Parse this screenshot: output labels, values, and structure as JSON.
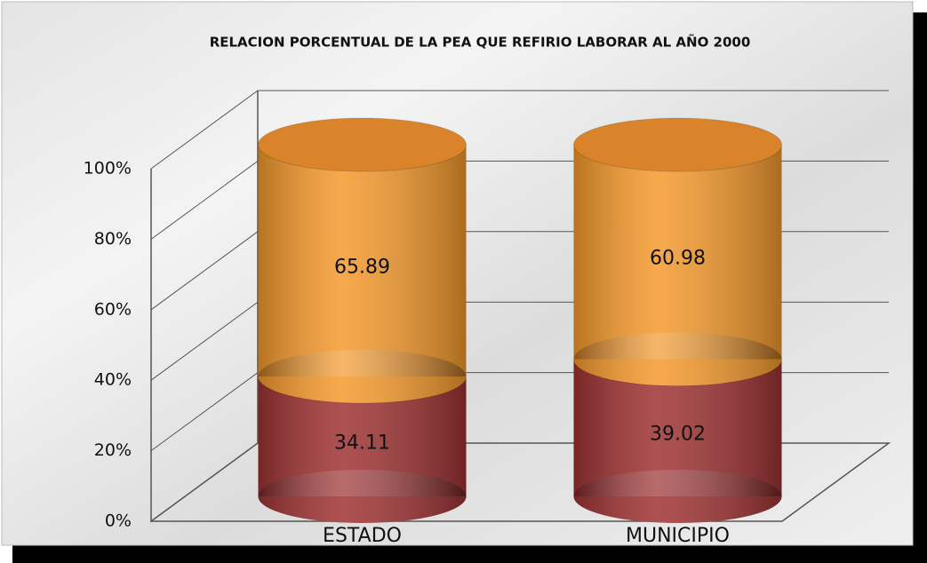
{
  "chart_data": {
    "type": "bar",
    "stacked": true,
    "title": "RELACION PORCENTUAL DE LA PEA QUE  REFIRIO LABORAR AL AÑO 2000",
    "categories": [
      "ESTADO",
      "MUNICIPIO"
    ],
    "series": [
      {
        "color": "#9e3232",
        "values": [
          34.11,
          39.02
        ]
      },
      {
        "color": "#f59a2c",
        "values": [
          65.89,
          60.98
        ]
      }
    ],
    "ylim": [
      0,
      100
    ],
    "yticks": [
      {
        "value": 0,
        "label": "0%"
      },
      {
        "value": 20,
        "label": "20%"
      },
      {
        "value": 40,
        "label": "40%"
      },
      {
        "value": 60,
        "label": "60%"
      },
      {
        "value": 80,
        "label": "80%"
      },
      {
        "value": 100,
        "label": "100%"
      }
    ],
    "grid": true
  }
}
